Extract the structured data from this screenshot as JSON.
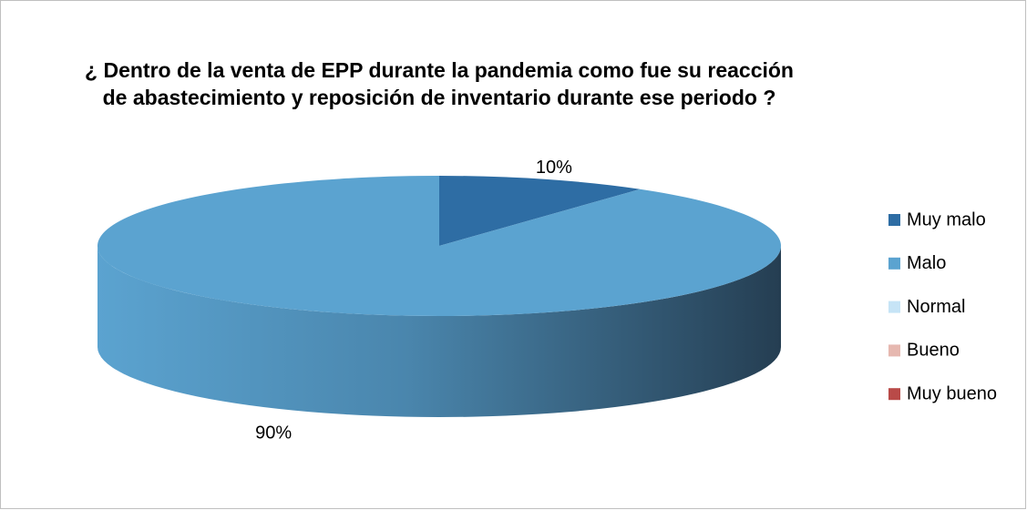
{
  "chart_data": {
    "type": "pie",
    "title": "¿  Dentro de la venta de EPP durante la pandemia como fue su reacción\nde  abastecimiento y reposición de inventario durante ese periodo  ?",
    "categories": [
      "Muy malo",
      "Malo",
      "Normal",
      "Bueno",
      "Muy bueno"
    ],
    "values": [
      10,
      90,
      0,
      0,
      0
    ],
    "value_labels": [
      "10%",
      "90%",
      null,
      null,
      null
    ],
    "colors": [
      "#2e6da4",
      "#5ba3d0",
      "#c6e4f6",
      "#e6b8b0",
      "#b94a48"
    ],
    "legend": "right"
  }
}
